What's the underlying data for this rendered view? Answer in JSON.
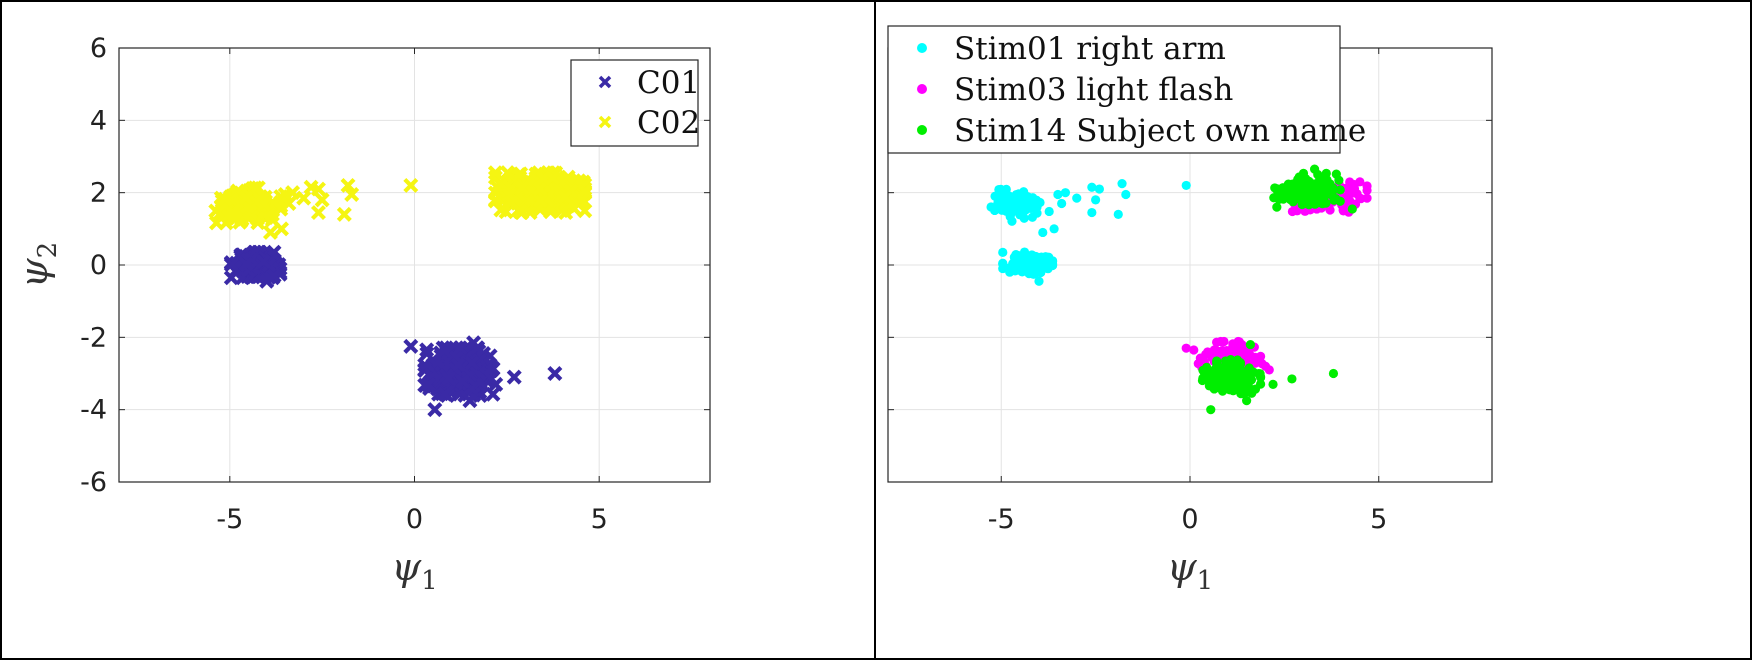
{
  "chart_data": [
    {
      "type": "scatter",
      "title": "",
      "xlabel": "ψ",
      "xlabel_sub": "1",
      "ylabel": "ψ",
      "ylabel_sub": "2",
      "xlim": [
        -8,
        8
      ],
      "ylim": [
        -6,
        6
      ],
      "xticks": [
        -5,
        0,
        5
      ],
      "yticks": [
        -6,
        -4,
        -2,
        0,
        2,
        4,
        6
      ],
      "grid": true,
      "legend": "top-right",
      "marker": "x",
      "series": [
        {
          "name": "C01",
          "color": "#3a2aa6",
          "clusters": [
            {
              "cx": -4.3,
              "cy": 0.0,
              "sx": 0.3,
              "sy": 0.16,
              "n": 160
            },
            {
              "cx": 1.2,
              "cy": -2.95,
              "sx": 0.42,
              "sy": 0.3,
              "n": 320
            }
          ],
          "points": [
            {
              "x": -4.0,
              "y": -0.45
            },
            {
              "x": -3.8,
              "y": -0.3
            },
            {
              "x": 0.55,
              "y": -4.0
            },
            {
              "x": 3.8,
              "y": -3.0
            },
            {
              "x": 2.7,
              "y": -3.1
            },
            {
              "x": -0.1,
              "y": -2.25
            },
            {
              "x": 1.6,
              "y": -2.15
            },
            {
              "x": 2.2,
              "y": -3.3
            },
            {
              "x": 1.5,
              "y": -3.75
            }
          ]
        },
        {
          "name": "C02",
          "color": "#f5f512",
          "clusters": [
            {
              "cx": -4.5,
              "cy": 1.65,
              "sx": 0.4,
              "sy": 0.22,
              "n": 150
            },
            {
              "cx": 3.4,
              "cy": 2.0,
              "sx": 0.55,
              "sy": 0.25,
              "n": 320
            }
          ],
          "points": [
            {
              "x": -3.5,
              "y": 1.95
            },
            {
              "x": -3.3,
              "y": 2.0
            },
            {
              "x": -3.4,
              "y": 1.7
            },
            {
              "x": -3.0,
              "y": 1.85
            },
            {
              "x": -2.6,
              "y": 2.1
            },
            {
              "x": -2.5,
              "y": 1.8
            },
            {
              "x": -2.6,
              "y": 1.45
            },
            {
              "x": -1.8,
              "y": 2.2
            },
            {
              "x": -1.7,
              "y": 1.95
            },
            {
              "x": -1.9,
              "y": 1.4
            },
            {
              "x": -0.1,
              "y": 2.2
            },
            {
              "x": -3.6,
              "y": 1.0
            },
            {
              "x": -3.9,
              "y": 0.9
            },
            {
              "x": -2.8,
              "y": 2.15
            },
            {
              "x": -4.9,
              "y": 1.3
            }
          ]
        }
      ]
    },
    {
      "type": "scatter",
      "title": "",
      "xlabel": "ψ",
      "xlabel_sub": "1",
      "ylabel": "ψ",
      "ylabel_sub": "2",
      "xlim": [
        -8,
        8
      ],
      "ylim": [
        -6,
        6
      ],
      "xticks": [
        -5,
        0,
        5
      ],
      "yticks": [
        -6,
        -4,
        -2,
        0,
        2,
        4,
        6
      ],
      "grid": true,
      "legend": "top-left",
      "marker": "circle",
      "series": [
        {
          "name": "Stim01 right arm",
          "color": "#00ffff",
          "clusters": [
            {
              "cx": -4.5,
              "cy": 1.65,
              "sx": 0.35,
              "sy": 0.2,
              "n": 90
            },
            {
              "cx": -4.3,
              "cy": 0.05,
              "sx": 0.3,
              "sy": 0.14,
              "n": 90
            }
          ],
          "points": [
            {
              "x": -3.5,
              "y": 1.95
            },
            {
              "x": -3.3,
              "y": 2.0
            },
            {
              "x": -3.4,
              "y": 1.7
            },
            {
              "x": -3.0,
              "y": 1.85
            },
            {
              "x": -2.6,
              "y": 2.15
            },
            {
              "x": -2.5,
              "y": 1.8
            },
            {
              "x": -2.6,
              "y": 1.45
            },
            {
              "x": -1.8,
              "y": 2.25
            },
            {
              "x": -1.7,
              "y": 1.95
            },
            {
              "x": -1.9,
              "y": 1.4
            },
            {
              "x": -0.1,
              "y": 2.2
            },
            {
              "x": -3.6,
              "y": 1.0
            },
            {
              "x": -3.9,
              "y": 0.9
            },
            {
              "x": -4.0,
              "y": -0.45
            },
            {
              "x": -2.4,
              "y": 2.1
            }
          ]
        },
        {
          "name": "Stim03 light flash",
          "color": "#ff00ff",
          "clusters": [
            {
              "cx": 3.7,
              "cy": 1.9,
              "sx": 0.45,
              "sy": 0.2,
              "n": 110
            },
            {
              "cx": 1.1,
              "cy": -2.6,
              "sx": 0.4,
              "sy": 0.22,
              "n": 120
            }
          ],
          "points": [
            {
              "x": -0.1,
              "y": -2.3
            },
            {
              "x": 0.1,
              "y": -2.35
            },
            {
              "x": 2.0,
              "y": -2.8
            },
            {
              "x": 2.1,
              "y": -2.9
            },
            {
              "x": 4.5,
              "y": 2.3
            },
            {
              "x": 4.5,
              "y": 1.85
            }
          ]
        },
        {
          "name": "Stim14 Subject own name",
          "color": "#00ee00",
          "clusters": [
            {
              "cx": 3.1,
              "cy": 2.05,
              "sx": 0.4,
              "sy": 0.22,
              "n": 140
            },
            {
              "cx": 1.1,
              "cy": -3.1,
              "sx": 0.35,
              "sy": 0.22,
              "n": 150
            }
          ],
          "points": [
            {
              "x": 0.55,
              "y": -4.0
            },
            {
              "x": 3.8,
              "y": -3.0
            },
            {
              "x": 2.7,
              "y": -3.15
            },
            {
              "x": 1.5,
              "y": -3.75
            },
            {
              "x": 1.6,
              "y": -2.2
            },
            {
              "x": 2.3,
              "y": 1.6
            },
            {
              "x": 4.3,
              "y": 1.55
            },
            {
              "x": 3.3,
              "y": 2.65
            },
            {
              "x": 2.2,
              "y": -3.3
            }
          ]
        }
      ]
    }
  ]
}
